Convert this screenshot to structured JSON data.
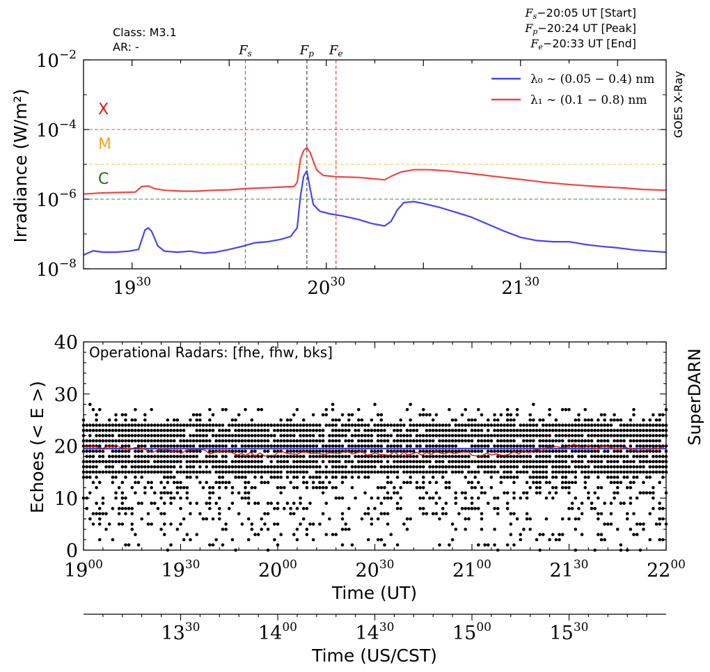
{
  "chart_data": [
    {
      "type": "line",
      "panel": "top",
      "title": "",
      "xlabel": "",
      "ylabel": "Irradiance (W/m²)",
      "right_label": "GOES X-Ray",
      "yscale": "log",
      "ylim": [
        1e-08,
        0.01
      ],
      "xlim": [
        "19:15",
        "22:15"
      ],
      "y_tick_labels": [
        {
          "value": 1e-08,
          "base": "10",
          "exp": "−8"
        },
        {
          "value": 1e-06,
          "base": "10",
          "exp": "−6"
        },
        {
          "value": 0.0001,
          "base": "10",
          "exp": "−4"
        },
        {
          "value": 0.01,
          "base": "10",
          "exp": "−2"
        }
      ],
      "x_tick_labels": [
        {
          "time": "19:30",
          "hour": "19",
          "min": "30"
        },
        {
          "time": "20:30",
          "hour": "20",
          "min": "30"
        },
        {
          "time": "21:30",
          "hour": "21",
          "min": "30"
        }
      ],
      "info_left": [
        "Class:  M3.1",
        "AR: -"
      ],
      "info_right": [
        {
          "sym": "F",
          "sub": "s",
          "text": "−20:05 UT [Start]"
        },
        {
          "sym": "F",
          "sub": "p",
          "text": "−20:24 UT [Peak]"
        },
        {
          "sym": "F",
          "sub": "e",
          "text": "−20:33 UT [End]"
        }
      ],
      "event_lines": [
        {
          "time": "20:05",
          "sym": "F",
          "sub": "s",
          "color": "#e8443a"
        },
        {
          "time": "20:24",
          "sym": "F",
          "sub": "p",
          "color": "#444444"
        },
        {
          "time": "20:33",
          "sym": "F",
          "sub": "e",
          "color": "#e8443a"
        }
      ],
      "class_thresholds": [
        {
          "label": "X",
          "value": 0.0001,
          "color": "#dd1111",
          "line_color": "#e05050"
        },
        {
          "label": "M",
          "value": 1e-05,
          "color": "#f5a623",
          "line_color": "#e8c84a"
        },
        {
          "label": "C",
          "value": 1e-06,
          "color": "#1a6b1a",
          "line_color": "#3a8a3a"
        }
      ],
      "series": [
        {
          "name": "λ₀ ∼ (0.05 − 0.4) nm",
          "color": "#4444ee",
          "points": [
            [
              "19:15",
              2.5e-08
            ],
            [
              "19:18",
              3.3e-08
            ],
            [
              "19:21",
              3e-08
            ],
            [
              "19:25",
              3e-08
            ],
            [
              "19:29",
              3.2e-08
            ],
            [
              "19:32",
              3.6e-08
            ],
            [
              "19:34",
              1.3e-07
            ],
            [
              "19:35",
              1.5e-07
            ],
            [
              "19:36",
              1.2e-07
            ],
            [
              "19:38",
              4.5e-08
            ],
            [
              "19:40",
              3.2e-08
            ],
            [
              "19:44",
              3e-08
            ],
            [
              "19:48",
              3.2e-08
            ],
            [
              "19:52",
              2.8e-08
            ],
            [
              "19:56",
              3e-08
            ],
            [
              "20:00",
              3.6e-08
            ],
            [
              "20:04",
              4.4e-08
            ],
            [
              "20:08",
              5.6e-08
            ],
            [
              "20:12",
              6e-08
            ],
            [
              "20:16",
              7e-08
            ],
            [
              "20:19",
              8.5e-08
            ],
            [
              "20:21",
              1.5e-07
            ],
            [
              "20:22",
              1.2e-06
            ],
            [
              "20:23",
              4.5e-06
            ],
            [
              "20:24",
              6.5e-06
            ],
            [
              "20:25",
              2e-06
            ],
            [
              "20:26",
              7e-07
            ],
            [
              "20:28",
              4.5e-07
            ],
            [
              "20:31",
              3.8e-07
            ],
            [
              "20:35",
              3.3e-07
            ],
            [
              "20:40",
              2.6e-07
            ],
            [
              "20:44",
              2e-07
            ],
            [
              "20:48",
              1.7e-07
            ],
            [
              "20:50",
              2.3e-07
            ],
            [
              "20:52",
              5e-07
            ],
            [
              "20:54",
              8e-07
            ],
            [
              "20:57",
              8.5e-07
            ],
            [
              "21:00",
              7.5e-07
            ],
            [
              "21:05",
              5.8e-07
            ],
            [
              "21:10",
              4.2e-07
            ],
            [
              "21:15",
              3e-07
            ],
            [
              "21:20",
              1.9e-07
            ],
            [
              "21:25",
              1.2e-07
            ],
            [
              "21:30",
              8e-08
            ],
            [
              "21:35",
              6.5e-08
            ],
            [
              "21:40",
              6e-08
            ],
            [
              "21:45",
              6e-08
            ],
            [
              "21:50",
              5e-08
            ],
            [
              "21:55",
              4.4e-08
            ],
            [
              "22:00",
              4e-08
            ],
            [
              "22:05",
              3.5e-08
            ],
            [
              "22:10",
              3.2e-08
            ],
            [
              "22:15",
              3e-08
            ]
          ]
        },
        {
          "name": "λ₁ ∼ (0.1 − 0.8) nm",
          "color": "#ee4444",
          "points": [
            [
              "19:15",
              1.4e-06
            ],
            [
              "19:20",
              1.5e-06
            ],
            [
              "19:25",
              1.55e-06
            ],
            [
              "19:31",
              1.6e-06
            ],
            [
              "19:33",
              2.3e-06
            ],
            [
              "19:35",
              2.4e-06
            ],
            [
              "19:37",
              2e-06
            ],
            [
              "19:40",
              1.8e-06
            ],
            [
              "19:45",
              1.7e-06
            ],
            [
              "19:50",
              1.7e-06
            ],
            [
              "19:55",
              1.8e-06
            ],
            [
              "20:00",
              1.85e-06
            ],
            [
              "20:05",
              2e-06
            ],
            [
              "20:10",
              2.1e-06
            ],
            [
              "20:15",
              2.2e-06
            ],
            [
              "20:20",
              2.3e-06
            ],
            [
              "20:21",
              3e-06
            ],
            [
              "20:22",
              1.4e-05
            ],
            [
              "20:23",
              2.5e-05
            ],
            [
              "20:24",
              3e-05
            ],
            [
              "20:25",
              2.2e-05
            ],
            [
              "20:27",
              7e-06
            ],
            [
              "20:29",
              4.8e-06
            ],
            [
              "20:33",
              4.4e-06
            ],
            [
              "20:40",
              4.2e-06
            ],
            [
              "20:48",
              3.6e-06
            ],
            [
              "20:50",
              4.5e-06
            ],
            [
              "20:53",
              6e-06
            ],
            [
              "20:57",
              7e-06
            ],
            [
              "21:02",
              7e-06
            ],
            [
              "21:08",
              6.4e-06
            ],
            [
              "21:15",
              5.4e-06
            ],
            [
              "21:22",
              4.5e-06
            ],
            [
              "21:30",
              3.7e-06
            ],
            [
              "21:38",
              3e-06
            ],
            [
              "21:46",
              2.6e-06
            ],
            [
              "21:54",
              2.3e-06
            ],
            [
              "22:02",
              2.1e-06
            ],
            [
              "22:08",
              1.9e-06
            ],
            [
              "22:15",
              1.8e-06
            ]
          ]
        }
      ]
    },
    {
      "type": "scatter",
      "panel": "bottom",
      "title": "",
      "annotation": "Operational Radars: [fhe, fhw, bks]",
      "right_label": "SuperDARN",
      "xlabel": "Time (UT)",
      "ylabel": "Echoes (< E >)",
      "ylim": [
        0,
        40
      ],
      "xlim": [
        "19:00",
        "22:00"
      ],
      "y_ticks": [
        0,
        10,
        20,
        30,
        40
      ],
      "x_tick_labels": [
        {
          "time": "19:00",
          "hour": "19",
          "min": "00"
        },
        {
          "time": "19:30",
          "hour": "19",
          "min": "30"
        },
        {
          "time": "20:00",
          "hour": "20",
          "min": "00"
        },
        {
          "time": "20:30",
          "hour": "20",
          "min": "30"
        },
        {
          "time": "21:00",
          "hour": "21",
          "min": "00"
        },
        {
          "time": "21:30",
          "hour": "21",
          "min": "30"
        },
        {
          "time": "22:00",
          "hour": "22",
          "min": "00"
        }
      ],
      "points_description_x_step_minutes": 1,
      "scatter_band": {
        "dense_min": 15,
        "dense_max": 24,
        "sparse_min": 0,
        "sparse_max": 28,
        "dot_color": "#000000"
      },
      "mean_line": {
        "value": 19.5,
        "color": "#2a2ad0"
      },
      "running_median": {
        "color": "#dd1111",
        "points": [
          [
            "19:00",
            19.5
          ],
          [
            "19:10",
            19.8
          ],
          [
            "19:20",
            19.2
          ],
          [
            "19:30",
            19.0
          ],
          [
            "19:40",
            18.9
          ],
          [
            "19:50",
            18.4
          ],
          [
            "20:00",
            18.6
          ],
          [
            "20:10",
            18.9
          ],
          [
            "20:20",
            18.7
          ],
          [
            "20:30",
            18.6
          ],
          [
            "20:40",
            18.4
          ],
          [
            "20:50",
            18.7
          ],
          [
            "21:00",
            18.5
          ],
          [
            "21:10",
            18.6
          ],
          [
            "21:20",
            19.0
          ],
          [
            "21:30",
            20.0
          ],
          [
            "21:40",
            19.8
          ],
          [
            "21:50",
            19.3
          ],
          [
            "22:00",
            19.4
          ]
        ]
      },
      "secondary_axis": {
        "label": "Time (US/CST)",
        "tick_labels": [
          {
            "time": "13:30",
            "hour": "13",
            "min": "30"
          },
          {
            "time": "14:00",
            "hour": "14",
            "min": "00"
          },
          {
            "time": "14:30",
            "hour": "14",
            "min": "30"
          },
          {
            "time": "15:00",
            "hour": "15",
            "min": "00"
          },
          {
            "time": "15:30",
            "hour": "15",
            "min": "30"
          }
        ],
        "offset_hours": -6
      }
    }
  ]
}
